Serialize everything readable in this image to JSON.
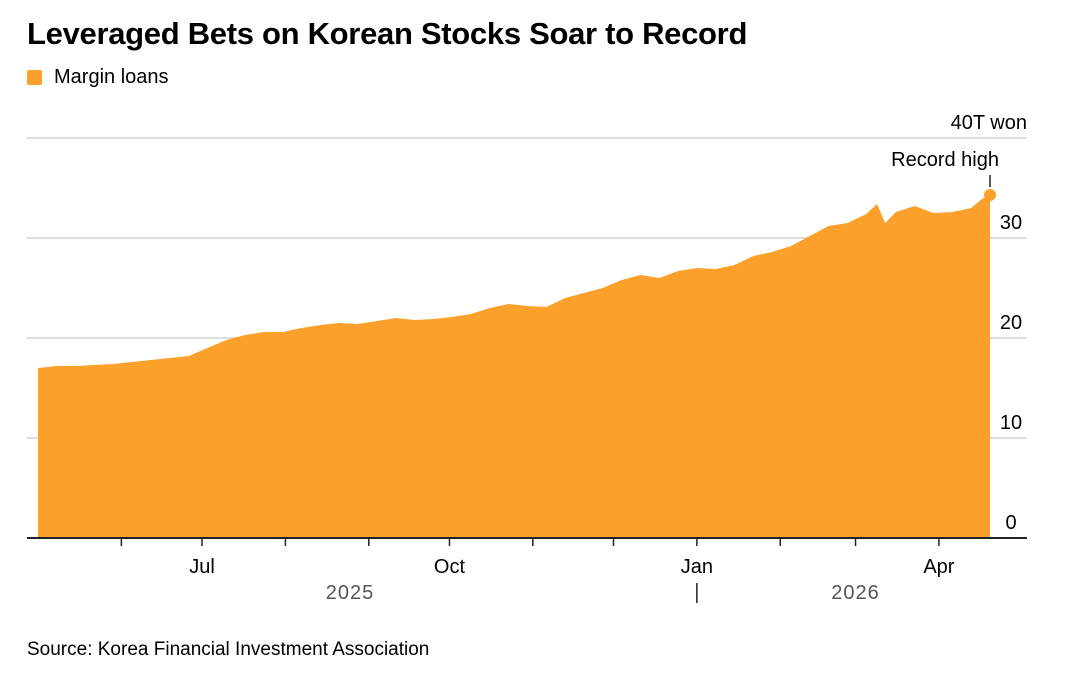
{
  "title": "Leveraged Bets on Korean Stocks Soar to Record",
  "source": "Source: Korea Financial Investment Association",
  "colors": {
    "area": "#fba12b",
    "grid": "#dcdcdc",
    "axis": "#222222",
    "year_label": "#555555"
  },
  "chart_data": {
    "type": "area",
    "legend": [
      {
        "label": "Margin loans",
        "color": "#fba12b"
      }
    ],
    "y_unit_label": "40T won",
    "ylim": [
      0,
      40
    ],
    "y_ticks": [
      {
        "value": 40,
        "label": "40T won"
      },
      {
        "value": 30,
        "label": "30"
      },
      {
        "value": 20,
        "label": "20"
      },
      {
        "value": 10,
        "label": "10"
      },
      {
        "value": 0,
        "label": "0"
      }
    ],
    "x_range": [
      "2025-05-01",
      "2026-04-20"
    ],
    "x_month_labels": [
      {
        "date": "2025-07-01",
        "label": "Jul"
      },
      {
        "date": "2025-10-01",
        "label": "Oct"
      },
      {
        "date": "2026-01-01",
        "label": "Jan"
      },
      {
        "date": "2026-04-01",
        "label": "Apr"
      }
    ],
    "x_year_labels": [
      {
        "date": "2025-08-25",
        "label": "2025"
      },
      {
        "date": "2026-03-01",
        "label": "2026"
      }
    ],
    "year_divider": "2026-01-01",
    "grid": true,
    "series": [
      {
        "name": "Margin loans",
        "points": [
          [
            "2025-05-01",
            17.0
          ],
          [
            "2025-05-08",
            17.2
          ],
          [
            "2025-05-15",
            17.2
          ],
          [
            "2025-05-22",
            17.3
          ],
          [
            "2025-05-29",
            17.4
          ],
          [
            "2025-06-05",
            17.6
          ],
          [
            "2025-06-12",
            17.8
          ],
          [
            "2025-06-19",
            18.0
          ],
          [
            "2025-06-26",
            18.2
          ],
          [
            "2025-07-03",
            19.0
          ],
          [
            "2025-07-10",
            19.8
          ],
          [
            "2025-07-17",
            20.3
          ],
          [
            "2025-07-24",
            20.6
          ],
          [
            "2025-07-31",
            20.6
          ],
          [
            "2025-08-07",
            21.0
          ],
          [
            "2025-08-14",
            21.3
          ],
          [
            "2025-08-21",
            21.5
          ],
          [
            "2025-08-28",
            21.4
          ],
          [
            "2025-09-04",
            21.7
          ],
          [
            "2025-09-11",
            22.0
          ],
          [
            "2025-09-18",
            21.8
          ],
          [
            "2025-09-25",
            21.9
          ],
          [
            "2025-10-02",
            22.1
          ],
          [
            "2025-10-09",
            22.4
          ],
          [
            "2025-10-16",
            23.0
          ],
          [
            "2025-10-23",
            23.4
          ],
          [
            "2025-10-30",
            23.2
          ],
          [
            "2025-11-06",
            23.1
          ],
          [
            "2025-11-13",
            24.0
          ],
          [
            "2025-11-20",
            24.5
          ],
          [
            "2025-11-27",
            25.0
          ],
          [
            "2025-12-04",
            25.8
          ],
          [
            "2025-12-11",
            26.3
          ],
          [
            "2025-12-18",
            26.0
          ],
          [
            "2025-12-25",
            26.7
          ],
          [
            "2026-01-01",
            27.0
          ],
          [
            "2026-01-08",
            26.9
          ],
          [
            "2026-01-15",
            27.3
          ],
          [
            "2026-01-22",
            28.2
          ],
          [
            "2026-01-29",
            28.6
          ],
          [
            "2026-02-05",
            29.2
          ],
          [
            "2026-02-12",
            30.2
          ],
          [
            "2026-02-19",
            31.2
          ],
          [
            "2026-02-26",
            31.5
          ],
          [
            "2026-03-05",
            32.4
          ],
          [
            "2026-03-09",
            33.4
          ],
          [
            "2026-03-12",
            31.5
          ],
          [
            "2026-03-16",
            32.6
          ],
          [
            "2026-03-23",
            33.2
          ],
          [
            "2026-03-30",
            32.5
          ],
          [
            "2026-04-06",
            32.6
          ],
          [
            "2026-04-13",
            33.0
          ],
          [
            "2026-04-17",
            33.9
          ],
          [
            "2026-04-20",
            34.3
          ]
        ]
      }
    ],
    "annotations": [
      {
        "text": "Record high",
        "date": "2026-04-20",
        "value": 34.3
      }
    ]
  }
}
